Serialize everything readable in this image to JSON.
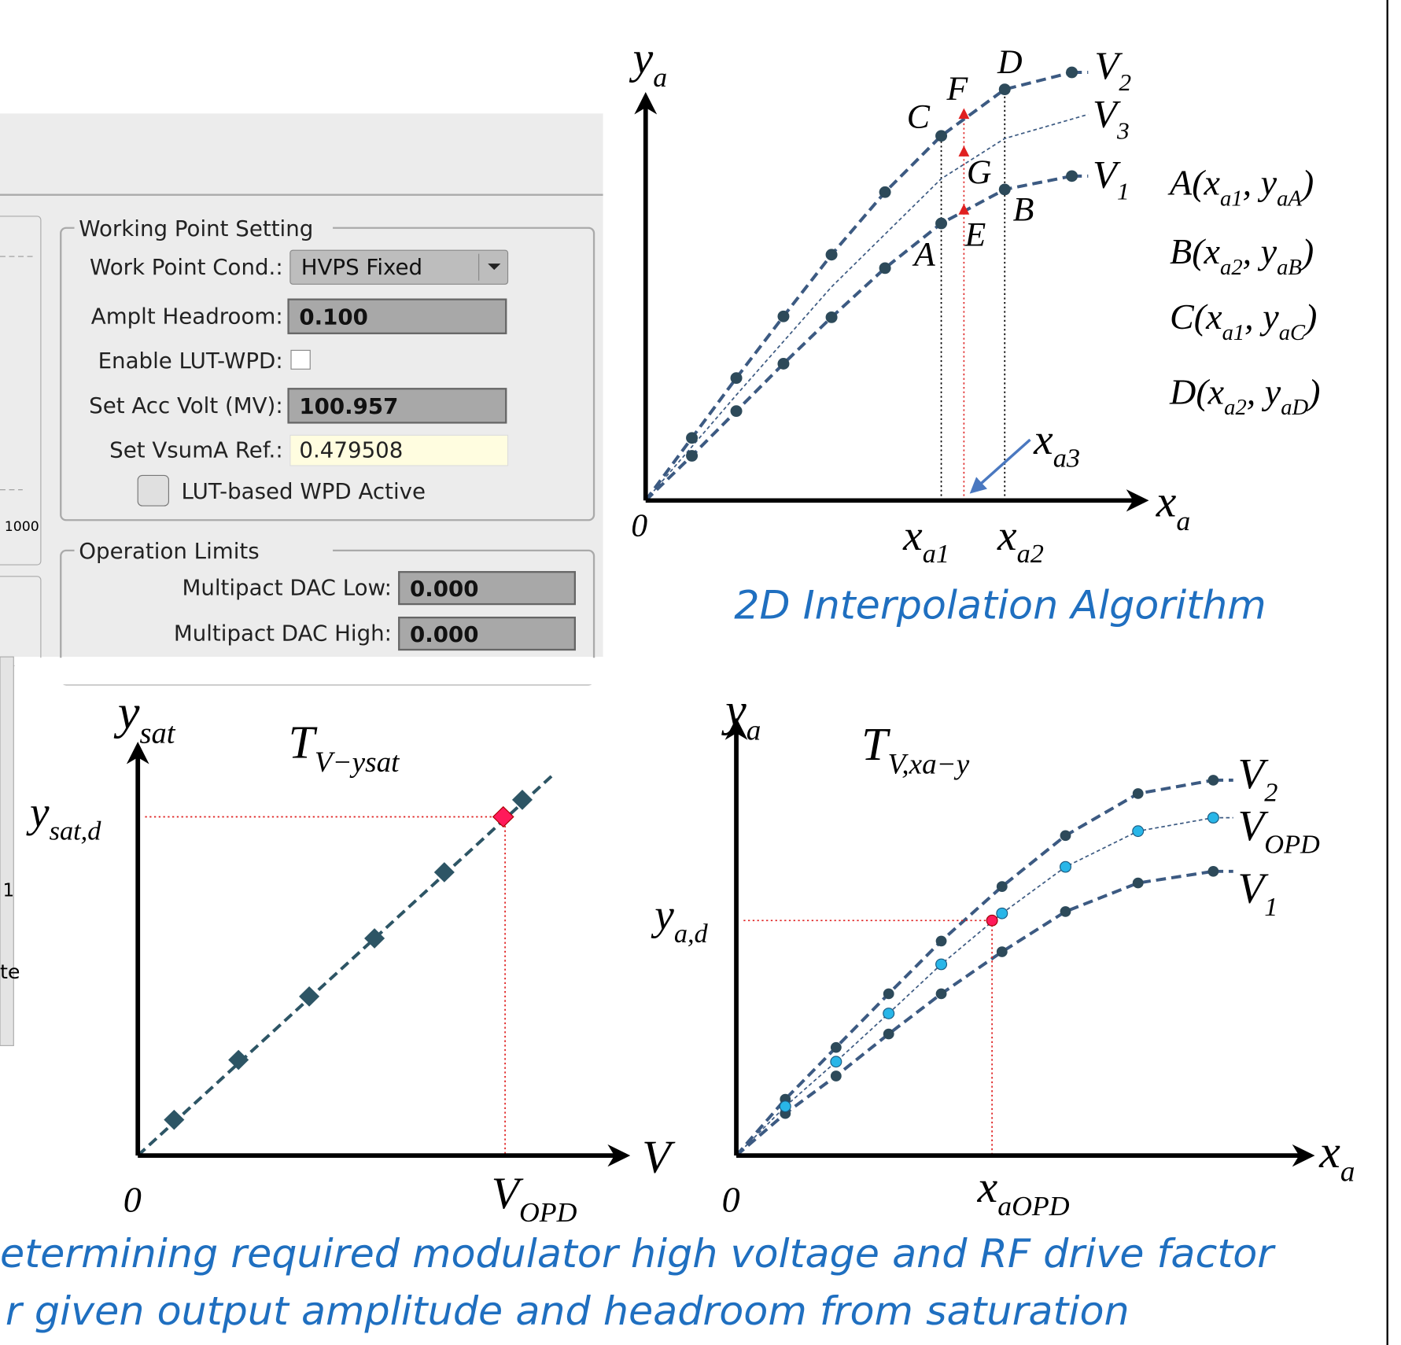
{
  "gui": {
    "working_point": {
      "title": "Working Point Setting",
      "rows": [
        {
          "label": "Work Point Cond.:",
          "value": "HVPS Fixed"
        },
        {
          "label": "Amplt Headroom:",
          "value": "0.100"
        },
        {
          "label": "Enable LUT-WPD:"
        },
        {
          "label": "Set Acc Volt (MV):",
          "value": "100.957"
        },
        {
          "label": "Set VsumA Ref.:",
          "value": "0.479508"
        }
      ],
      "button": "LUT-based WPD Active"
    },
    "operation_limits": {
      "title": "Operation Limits",
      "rows": [
        {
          "label": "Multipact DAC Low:",
          "value": "0.000"
        },
        {
          "label": "Multipact DAC High:",
          "value": "0.000"
        }
      ]
    },
    "fragments": [
      "1000",
      "1",
      "te"
    ]
  },
  "interpolation": {
    "y_axis": [
      {
        "text": "y"
      },
      {
        "sub": "a"
      }
    ],
    "x_axis": [
      {
        "text": "x"
      },
      {
        "sub": "a"
      }
    ],
    "origin": "0",
    "curves": [
      [
        {
          "text": "V"
        },
        {
          "sub": "2"
        }
      ],
      [
        {
          "text": "V"
        },
        {
          "sub": "3"
        }
      ],
      [
        {
          "text": "V"
        },
        {
          "sub": "1"
        }
      ]
    ],
    "points": [
      "D",
      "F",
      "C",
      "G",
      "B",
      "E",
      "A"
    ],
    "coordinates": [
      [
        {
          "text": "A("
        },
        {
          "text": "x"
        },
        {
          "sub": "a1"
        },
        {
          "text": ", y"
        },
        {
          "sub": "aA"
        },
        {
          "text": ")"
        }
      ],
      [
        {
          "text": "B("
        },
        {
          "text": "x"
        },
        {
          "sub": "a2"
        },
        {
          "text": ", y"
        },
        {
          "sub": "aB"
        },
        {
          "text": ")"
        }
      ],
      [
        {
          "text": "C("
        },
        {
          "text": "x"
        },
        {
          "sub": "a1"
        },
        {
          "text": ", y"
        },
        {
          "sub": "aC"
        },
        {
          "text": ")"
        }
      ],
      [
        {
          "text": "D("
        },
        {
          "text": "x"
        },
        {
          "sub": "a2"
        },
        {
          "text": ", y"
        },
        {
          "sub": "aD"
        },
        {
          "text": ")"
        }
      ]
    ],
    "x_a3": [
      {
        "text": "x"
      },
      {
        "sub": "a3"
      }
    ],
    "x_a1": [
      {
        "text": "x"
      },
      {
        "sub": "a1"
      }
    ],
    "x_a2": [
      {
        "text": "x"
      },
      {
        "sub": "a2"
      }
    ],
    "caption": "2D Interpolation Algorithm"
  },
  "saturation": {
    "y_axis": [
      {
        "text": "y"
      },
      {
        "sub": "sat"
      }
    ],
    "table": [
      {
        "text": "T"
      },
      {
        "sub": "V−ysat"
      }
    ],
    "y_level": [
      {
        "text": "y"
      },
      {
        "sub": "sat,d"
      }
    ],
    "x_axis": "V",
    "origin": "0",
    "x_level": [
      {
        "text": "V"
      },
      {
        "sub": "OPD"
      }
    ]
  },
  "lut": {
    "y_axis": [
      {
        "text": "y"
      },
      {
        "sub": "a"
      }
    ],
    "table": [
      {
        "text": "T"
      },
      {
        "sub": "V,xa−y"
      }
    ],
    "curves": [
      [
        {
          "text": "V"
        },
        {
          "sub": "2"
        }
      ],
      [
        {
          "text": "V"
        },
        {
          "sub": "OPD"
        }
      ],
      [
        {
          "text": "V"
        },
        {
          "sub": "1"
        }
      ]
    ],
    "y_level": [
      {
        "text": "y"
      },
      {
        "sub": "a,d"
      }
    ],
    "x_axis": [
      {
        "text": "x"
      },
      {
        "sub": "a"
      }
    ],
    "origin": "0",
    "x_level": [
      {
        "text": "x"
      },
      {
        "sub": "aOPD"
      }
    ]
  },
  "caption_lines": [
    "etermining required modulator high voltage and RF drive factor",
    "r given output amplitude and headroom from saturation"
  ]
}
